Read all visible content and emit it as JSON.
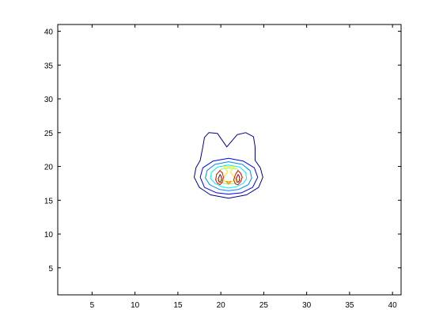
{
  "chart_data": {
    "type": "contour",
    "title": "",
    "xlabel": "",
    "ylabel": "",
    "xlim": [
      1,
      41
    ],
    "ylim": [
      1,
      41
    ],
    "grid": false,
    "legend": "none",
    "x_ticks": [
      5,
      10,
      15,
      20,
      25,
      30,
      35,
      40
    ],
    "y_ticks": [
      5,
      10,
      15,
      20,
      25,
      30,
      35,
      40
    ],
    "contours": [
      {
        "color": "#00008f",
        "points": [
          [
            20.7,
            22.9
          ],
          [
            19.6,
            24.9
          ],
          [
            18.6,
            25.0
          ],
          [
            18.1,
            24.3
          ],
          [
            17.9,
            22.9
          ],
          [
            17.6,
            20.9
          ],
          [
            17.1,
            19.8
          ],
          [
            16.9,
            18.4
          ],
          [
            17.5,
            16.9
          ],
          [
            18.8,
            15.8
          ],
          [
            20.9,
            15.3
          ],
          [
            23.0,
            15.8
          ],
          [
            24.4,
            16.9
          ],
          [
            24.9,
            18.4
          ],
          [
            24.6,
            19.8
          ],
          [
            24.0,
            20.9
          ],
          [
            24.0,
            22.9
          ],
          [
            23.8,
            24.4
          ],
          [
            22.9,
            25.0
          ],
          [
            21.9,
            24.7
          ]
        ]
      },
      {
        "color": "#0000ff",
        "points": [
          [
            20.9,
            21.2
          ],
          [
            19.1,
            20.8
          ],
          [
            17.9,
            19.8
          ],
          [
            17.6,
            18.4
          ],
          [
            18.1,
            16.9
          ],
          [
            19.5,
            16.1
          ],
          [
            20.9,
            15.9
          ],
          [
            22.4,
            16.1
          ],
          [
            23.7,
            16.9
          ],
          [
            24.3,
            18.4
          ],
          [
            23.9,
            19.8
          ],
          [
            22.6,
            20.8
          ]
        ]
      },
      {
        "color": "#0088ff",
        "points": [
          [
            20.9,
            20.7
          ],
          [
            19.3,
            20.3
          ],
          [
            18.4,
            19.4
          ],
          [
            18.2,
            18.3
          ],
          [
            18.7,
            17.3
          ],
          [
            19.8,
            16.6
          ],
          [
            20.9,
            16.4
          ],
          [
            22.1,
            16.6
          ],
          [
            23.2,
            17.3
          ],
          [
            23.6,
            18.3
          ],
          [
            23.4,
            19.4
          ],
          [
            22.5,
            20.3
          ]
        ]
      },
      {
        "color": "#00eeff",
        "points": [
          [
            20.9,
            20.2
          ],
          [
            19.6,
            19.9
          ],
          [
            18.9,
            19.1
          ],
          [
            18.8,
            18.2
          ],
          [
            19.3,
            17.5
          ],
          [
            20.1,
            17.0
          ],
          [
            20.9,
            16.8
          ],
          [
            21.8,
            17.0
          ],
          [
            22.6,
            17.5
          ],
          [
            23.0,
            18.2
          ],
          [
            22.9,
            19.1
          ],
          [
            22.2,
            19.9
          ]
        ]
      },
      {
        "color": "#7fff7f",
        "points": [
          [
            20.9,
            19.8
          ],
          [
            20.0,
            19.6
          ],
          [
            19.5,
            18.8
          ],
          [
            19.5,
            18.0
          ],
          [
            20.2,
            17.5
          ],
          [
            20.9,
            17.4
          ],
          [
            21.7,
            17.5
          ],
          [
            22.4,
            18.0
          ],
          [
            22.4,
            18.8
          ],
          [
            21.9,
            19.6
          ]
        ]
      },
      {
        "color": "#ffee00",
        "points": [
          [
            20.3,
            20.0
          ],
          [
            21.6,
            20.0
          ],
          [
            21.1,
            19.2
          ],
          [
            21.8,
            18.0
          ],
          [
            21.3,
            17.8
          ],
          [
            20.9,
            17.6
          ],
          [
            20.5,
            17.8
          ],
          [
            20.1,
            18.0
          ],
          [
            20.8,
            19.2
          ]
        ]
      },
      {
        "color": "#ff8800",
        "points": [
          [
            20.6,
            17.8
          ],
          [
            20.9,
            17.4
          ],
          [
            21.2,
            17.8
          ],
          [
            20.9,
            17.7
          ]
        ]
      },
      {
        "color": "#ff0000",
        "points": [
          [
            19.9,
            19.4
          ],
          [
            19.5,
            18.8
          ],
          [
            19.4,
            18.0
          ],
          [
            19.6,
            17.5
          ],
          [
            19.9,
            17.3
          ],
          [
            20.2,
            17.7
          ],
          [
            20.3,
            18.4
          ],
          [
            20.2,
            19.0
          ]
        ]
      },
      {
        "color": "#ff0000",
        "points": [
          [
            22.0,
            19.4
          ],
          [
            21.7,
            18.8
          ],
          [
            21.5,
            18.0
          ],
          [
            21.7,
            17.4
          ],
          [
            22.0,
            17.3
          ],
          [
            22.3,
            17.7
          ],
          [
            22.5,
            18.4
          ],
          [
            22.3,
            19.0
          ]
        ]
      },
      {
        "color": "#8f0000",
        "points": [
          [
            19.9,
            18.8
          ],
          [
            19.7,
            18.2
          ],
          [
            19.8,
            17.7
          ],
          [
            20.0,
            17.7
          ],
          [
            20.1,
            18.2
          ],
          [
            20.0,
            18.7
          ]
        ]
      },
      {
        "color": "#8f0000",
        "points": [
          [
            22.0,
            18.8
          ],
          [
            21.8,
            18.2
          ],
          [
            21.9,
            17.7
          ],
          [
            22.1,
            17.7
          ],
          [
            22.2,
            18.2
          ],
          [
            22.1,
            18.7
          ]
        ]
      }
    ]
  }
}
